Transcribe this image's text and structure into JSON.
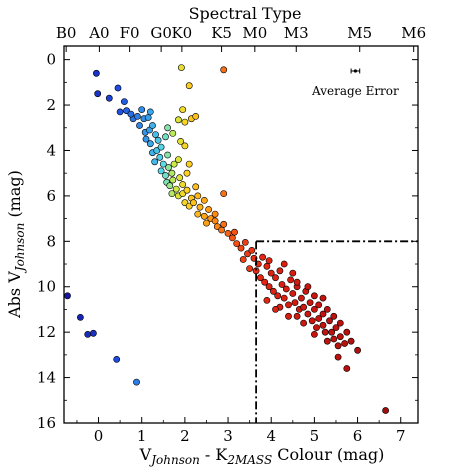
{
  "chart_data": {
    "type": "scatter",
    "title": "",
    "top_axis_title": "Spectral Type",
    "top_axis_ticks": [
      {
        "label": "B0",
        "x": -0.75
      },
      {
        "label": "A0",
        "x": 0.02
      },
      {
        "label": "F0",
        "x": 0.72
      },
      {
        "label": "G0",
        "x": 1.45
      },
      {
        "label": "K0",
        "x": 1.93
      },
      {
        "label": "K5",
        "x": 2.85
      },
      {
        "label": "M0",
        "x": 3.62
      },
      {
        "label": "M3",
        "x": 4.58
      },
      {
        "label": "M5",
        "x": 6.05
      },
      {
        "label": "M6",
        "x": 7.3
      }
    ],
    "xlabel_prefix": "V",
    "xlabel_sub1": "Johnson",
    "xlabel_mid": " - K",
    "xlabel_sub2": "2MASS",
    "xlabel_suffix": " Colour (mag)",
    "ylabel_prefix": "Abs V",
    "ylabel_sub": "Johnson",
    "ylabel_suffix": " (mag)",
    "xlim": [
      -0.8,
      7.4
    ],
    "ylim": [
      16,
      -0.6
    ],
    "x_ticks": [
      0,
      1,
      2,
      3,
      4,
      5,
      6,
      7
    ],
    "y_ticks": [
      0,
      2,
      4,
      6,
      8,
      10,
      12,
      14,
      16
    ],
    "grid": false,
    "cut_lines": {
      "x": 3.65,
      "y": 8.0
    },
    "error_bar": {
      "label": "Average Error",
      "x": 5.95,
      "y": 0.5,
      "xerr": 0.1
    },
    "colors": {
      "marker_edge": "#000000",
      "cut_line": "#000000"
    },
    "stars": [
      {
        "x": -0.05,
        "y": 0.6
      },
      {
        "x": -0.02,
        "y": 1.5
      },
      {
        "x": 0.25,
        "y": 1.7
      },
      {
        "x": 0.45,
        "y": 1.25
      },
      {
        "x": 0.6,
        "y": 1.85
      },
      {
        "x": 0.5,
        "y": 2.3
      },
      {
        "x": 0.65,
        "y": 2.25
      },
      {
        "x": 0.8,
        "y": 2.6
      },
      {
        "x": 0.75,
        "y": 2.4
      },
      {
        "x": 0.9,
        "y": 2.5
      },
      {
        "x": 1.0,
        "y": 2.2
      },
      {
        "x": 1.05,
        "y": 2.6
      },
      {
        "x": 1.15,
        "y": 2.55
      },
      {
        "x": 1.2,
        "y": 2.3
      },
      {
        "x": 0.95,
        "y": 2.9
      },
      {
        "x": 1.08,
        "y": 3.2
      },
      {
        "x": 1.18,
        "y": 3.1
      },
      {
        "x": 1.25,
        "y": 2.9
      },
      {
        "x": 1.1,
        "y": 3.5
      },
      {
        "x": 1.2,
        "y": 3.7
      },
      {
        "x": 1.32,
        "y": 3.3
      },
      {
        "x": 1.38,
        "y": 3.55
      },
      {
        "x": 1.25,
        "y": 4.1
      },
      {
        "x": 1.35,
        "y": 4.0
      },
      {
        "x": 1.45,
        "y": 3.85
      },
      {
        "x": 1.3,
        "y": 4.5
      },
      {
        "x": 1.42,
        "y": 4.3
      },
      {
        "x": 1.5,
        "y": 4.6
      },
      {
        "x": 1.6,
        "y": 4.2
      },
      {
        "x": 1.55,
        "y": 3.4
      },
      {
        "x": 1.6,
        "y": 3.0
      },
      {
        "x": 1.72,
        "y": 3.25
      },
      {
        "x": 1.45,
        "y": 4.9
      },
      {
        "x": 1.55,
        "y": 5.1
      },
      {
        "x": 1.62,
        "y": 4.75
      },
      {
        "x": 1.7,
        "y": 5.0
      },
      {
        "x": 1.75,
        "y": 4.6
      },
      {
        "x": 1.85,
        "y": 4.4
      },
      {
        "x": 1.9,
        "y": 3.6
      },
      {
        "x": 2.0,
        "y": 3.8
      },
      {
        "x": 1.58,
        "y": 5.4
      },
      {
        "x": 1.65,
        "y": 5.55
      },
      {
        "x": 1.72,
        "y": 5.3
      },
      {
        "x": 1.8,
        "y": 5.7
      },
      {
        "x": 1.88,
        "y": 5.2
      },
      {
        "x": 1.95,
        "y": 5.5
      },
      {
        "x": 2.05,
        "y": 5.0
      },
      {
        "x": 2.1,
        "y": 4.6
      },
      {
        "x": 1.7,
        "y": 5.9
      },
      {
        "x": 1.85,
        "y": 6.0
      },
      {
        "x": 1.95,
        "y": 5.9
      },
      {
        "x": 2.05,
        "y": 5.75
      },
      {
        "x": 2.15,
        "y": 6.1
      },
      {
        "x": 2.25,
        "y": 5.6
      },
      {
        "x": 2.3,
        "y": 6.0
      },
      {
        "x": 2.0,
        "y": 6.3
      },
      {
        "x": 2.1,
        "y": 6.45
      },
      {
        "x": 2.2,
        "y": 6.3
      },
      {
        "x": 2.35,
        "y": 6.5
      },
      {
        "x": 2.45,
        "y": 6.2
      },
      {
        "x": 2.3,
        "y": 6.8
      },
      {
        "x": 2.45,
        "y": 6.9
      },
      {
        "x": 2.55,
        "y": 6.6
      },
      {
        "x": 2.6,
        "y": 7.0
      },
      {
        "x": 2.5,
        "y": 7.2
      },
      {
        "x": 2.7,
        "y": 7.1
      },
      {
        "x": 2.75,
        "y": 7.35
      },
      {
        "x": 2.85,
        "y": 7.5
      },
      {
        "x": 2.9,
        "y": 7.25
      },
      {
        "x": 3.0,
        "y": 7.65
      },
      {
        "x": 2.7,
        "y": 6.8
      },
      {
        "x": 2.9,
        "y": 5.9
      },
      {
        "x": 1.85,
        "y": 2.65
      },
      {
        "x": 2.0,
        "y": 2.75
      },
      {
        "x": 2.15,
        "y": 2.6
      },
      {
        "x": 2.25,
        "y": 2.5
      },
      {
        "x": 1.92,
        "y": 0.35
      },
      {
        "x": 2.9,
        "y": 0.45
      },
      {
        "x": 2.1,
        "y": 1.15
      },
      {
        "x": 1.95,
        "y": 2.2
      },
      {
        "x": 3.1,
        "y": 7.85
      },
      {
        "x": 3.2,
        "y": 8.1
      },
      {
        "x": 3.15,
        "y": 7.6
      },
      {
        "x": 3.3,
        "y": 8.3
      },
      {
        "x": 3.4,
        "y": 8.05
      },
      {
        "x": 3.45,
        "y": 8.55
      },
      {
        "x": 3.55,
        "y": 8.4
      },
      {
        "x": 3.6,
        "y": 8.75
      },
      {
        "x": 3.35,
        "y": 8.8
      },
      {
        "x": 3.7,
        "y": 9.0
      },
      {
        "x": 3.8,
        "y": 8.7
      },
      {
        "x": 3.65,
        "y": 9.3
      },
      {
        "x": 3.9,
        "y": 9.1
      },
      {
        "x": 4.0,
        "y": 9.4
      },
      {
        "x": 3.75,
        "y": 9.6
      },
      {
        "x": 3.85,
        "y": 9.8
      },
      {
        "x": 4.1,
        "y": 9.6
      },
      {
        "x": 4.2,
        "y": 9.3
      },
      {
        "x": 3.95,
        "y": 10.0
      },
      {
        "x": 4.05,
        "y": 10.2
      },
      {
        "x": 4.25,
        "y": 9.9
      },
      {
        "x": 4.35,
        "y": 10.1
      },
      {
        "x": 4.45,
        "y": 9.7
      },
      {
        "x": 4.15,
        "y": 10.4
      },
      {
        "x": 4.3,
        "y": 10.5
      },
      {
        "x": 4.5,
        "y": 10.3
      },
      {
        "x": 4.6,
        "y": 10.0
      },
      {
        "x": 4.4,
        "y": 10.8
      },
      {
        "x": 4.55,
        "y": 10.7
      },
      {
        "x": 4.7,
        "y": 10.5
      },
      {
        "x": 4.8,
        "y": 10.2
      },
      {
        "x": 4.65,
        "y": 11.0
      },
      {
        "x": 4.75,
        "y": 10.9
      },
      {
        "x": 4.9,
        "y": 10.7
      },
      {
        "x": 5.0,
        "y": 10.4
      },
      {
        "x": 4.6,
        "y": 11.3
      },
      {
        "x": 4.85,
        "y": 11.2
      },
      {
        "x": 5.0,
        "y": 11.0
      },
      {
        "x": 5.1,
        "y": 10.8
      },
      {
        "x": 4.95,
        "y": 11.5
      },
      {
        "x": 5.1,
        "y": 11.4
      },
      {
        "x": 5.2,
        "y": 11.2
      },
      {
        "x": 5.3,
        "y": 11.0
      },
      {
        "x": 5.05,
        "y": 11.8
      },
      {
        "x": 5.2,
        "y": 11.7
      },
      {
        "x": 5.35,
        "y": 11.5
      },
      {
        "x": 5.45,
        "y": 11.3
      },
      {
        "x": 5.25,
        "y": 12.0
      },
      {
        "x": 5.4,
        "y": 12.0
      },
      {
        "x": 5.5,
        "y": 11.8
      },
      {
        "x": 5.6,
        "y": 11.6
      },
      {
        "x": 5.45,
        "y": 12.3
      },
      {
        "x": 5.6,
        "y": 12.2
      },
      {
        "x": 5.75,
        "y": 12.0
      },
      {
        "x": 5.55,
        "y": 12.6
      },
      {
        "x": 5.7,
        "y": 12.5
      },
      {
        "x": 5.85,
        "y": 12.4
      },
      {
        "x": 4.3,
        "y": 9.0
      },
      {
        "x": 4.5,
        "y": 9.4
      },
      {
        "x": 4.2,
        "y": 10.9
      },
      {
        "x": 4.4,
        "y": 11.3
      },
      {
        "x": 4.75,
        "y": 11.6
      },
      {
        "x": 5.0,
        "y": 12.1
      },
      {
        "x": 5.3,
        "y": 12.4
      },
      {
        "x": 4.6,
        "y": 9.8
      },
      {
        "x": 4.85,
        "y": 10.0
      },
      {
        "x": 3.5,
        "y": 9.2
      },
      {
        "x": 3.95,
        "y": 8.85
      },
      {
        "x": 5.55,
        "y": 13.1
      },
      {
        "x": 5.75,
        "y": 13.6
      },
      {
        "x": 6.0,
        "y": 12.8
      },
      {
        "x": 5.2,
        "y": 10.5
      },
      {
        "x": 3.9,
        "y": 10.6
      },
      {
        "x": 4.1,
        "y": 11.0
      },
      {
        "x": 6.65,
        "y": 15.45
      },
      {
        "x": -0.72,
        "y": 10.4
      },
      {
        "x": -0.42,
        "y": 11.35
      },
      {
        "x": -0.25,
        "y": 12.1
      },
      {
        "x": -0.12,
        "y": 12.05
      },
      {
        "x": 0.42,
        "y": 13.2
      },
      {
        "x": 0.88,
        "y": 14.2
      }
    ]
  }
}
